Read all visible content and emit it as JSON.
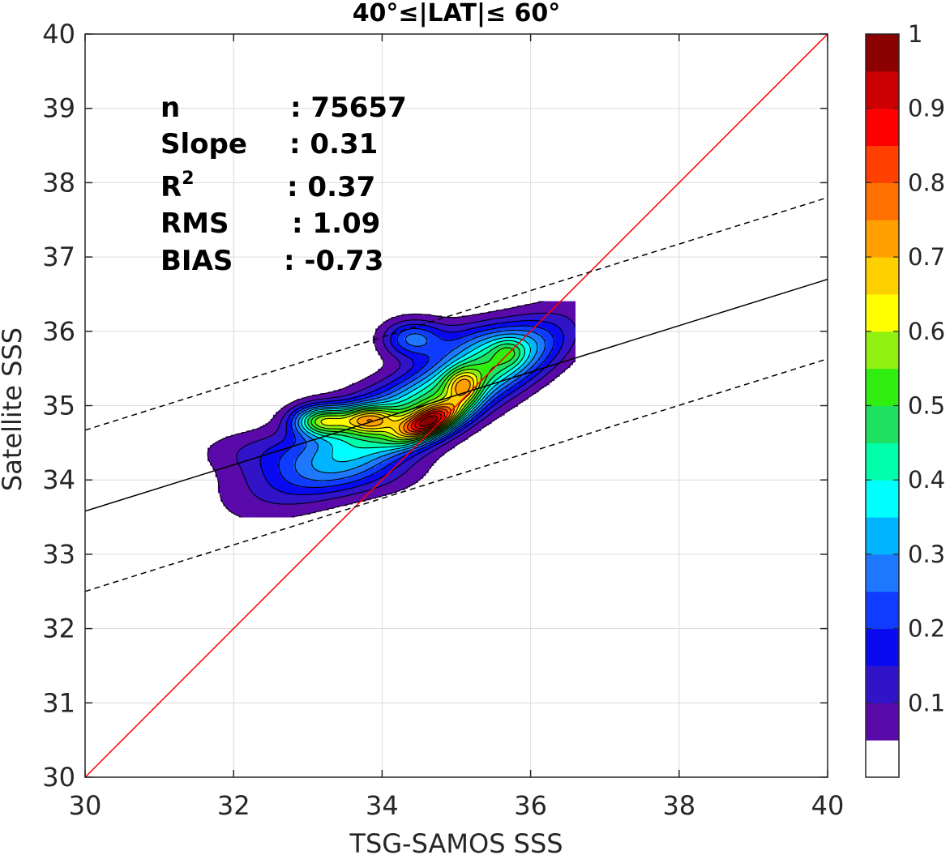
{
  "chart_data": {
    "type": "contour",
    "title": "40°≤|LAT|≤ 60°",
    "xlabel": "TSG-SAMOS SSS",
    "ylabel": "Satellite SSS",
    "xlim": [
      30,
      40
    ],
    "ylim": [
      30,
      40
    ],
    "x_ticks": [
      "30",
      "32",
      "34",
      "36",
      "38",
      "40"
    ],
    "y_ticks": [
      "30",
      "31",
      "32",
      "33",
      "34",
      "35",
      "36",
      "37",
      "38",
      "39",
      "40"
    ],
    "grid": true,
    "stats": [
      {
        "label": "n",
        "value": ": 75657"
      },
      {
        "label": "Slope",
        "value": ": 0.31"
      },
      {
        "label": "R",
        "sup": "2",
        "value": ": 0.37"
      },
      {
        "label": "RMS",
        "value": ": 1.09"
      },
      {
        "label": "BIAS",
        "value": ": -0.73"
      }
    ],
    "lines": [
      {
        "name": "one-to-one",
        "color": "#ff0000",
        "style": "solid",
        "points": [
          [
            30,
            30
          ],
          [
            40,
            40
          ]
        ]
      },
      {
        "name": "regression",
        "color": "#000000",
        "style": "solid",
        "points": [
          [
            30,
            33.58
          ],
          [
            40,
            36.7
          ]
        ]
      },
      {
        "name": "regression-upper",
        "color": "#000000",
        "style": "dashed",
        "points": [
          [
            30,
            34.67
          ],
          [
            40,
            37.8
          ]
        ]
      },
      {
        "name": "regression-lower",
        "color": "#000000",
        "style": "dashed",
        "points": [
          [
            30,
            32.5
          ],
          [
            40,
            35.63
          ]
        ]
      }
    ],
    "contour_levels": [
      0.05,
      0.1,
      0.15,
      0.2,
      0.25,
      0.3,
      0.35,
      0.4,
      0.45,
      0.5,
      0.55,
      0.6,
      0.65,
      0.7,
      0.75,
      0.8,
      0.85,
      0.9,
      0.95
    ],
    "colorbar": {
      "range": [
        0,
        1
      ],
      "tick_labels": [
        "0.1",
        "0.2",
        "0.3",
        "0.4",
        "0.5",
        "0.6",
        "0.7",
        "0.8",
        "0.9",
        "1"
      ],
      "tick_values": [
        0.1,
        0.2,
        0.3,
        0.4,
        0.5,
        0.6,
        0.7,
        0.8,
        0.9,
        1.0
      ],
      "colors": [
        "#ffffff",
        "#5a0aa8",
        "#3214c8",
        "#0a0af0",
        "#0f3cff",
        "#1e78ff",
        "#00b4ff",
        "#00ffff",
        "#00ffaa",
        "#20e060",
        "#30ee10",
        "#90f010",
        "#ffff00",
        "#ffd000",
        "#ffa000",
        "#ff7000",
        "#ff4000",
        "#ff0000",
        "#cc0000",
        "#8b0000"
      ]
    },
    "density_peaks": [
      {
        "x": 34.6,
        "y": 34.78,
        "value": 1.0
      },
      {
        "x": 35.1,
        "y": 35.25,
        "value": 0.75
      },
      {
        "x": 33.2,
        "y": 34.8,
        "value": 0.7
      },
      {
        "x": 33.8,
        "y": 34.82,
        "value": 0.7
      },
      {
        "x": 34.0,
        "y": 34.7,
        "value": 0.6
      },
      {
        "x": 35.7,
        "y": 35.72,
        "value": 0.35
      },
      {
        "x": 34.4,
        "y": 35.9,
        "value": 0.3
      }
    ]
  }
}
